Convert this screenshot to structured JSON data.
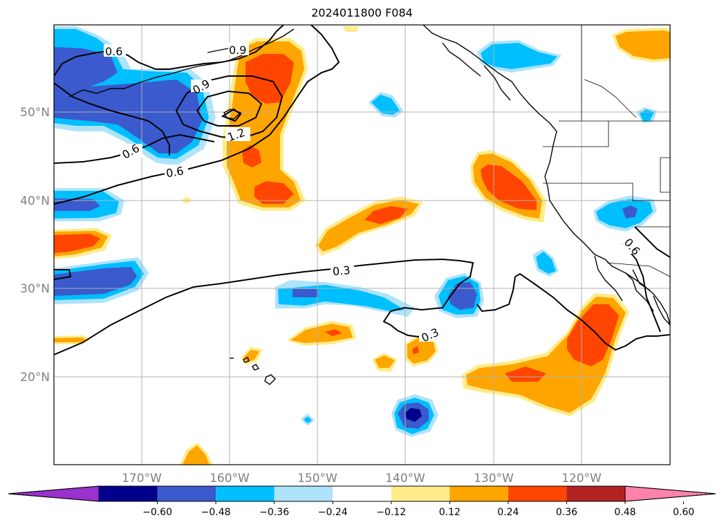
{
  "title": "2024011800 F084",
  "map": {
    "latitude_labels": [
      "50°N",
      "40°N",
      "30°N",
      "20°N"
    ],
    "longitude_labels": [
      "170°W",
      "160°W",
      "150°W",
      "140°W",
      "130°W",
      "120°W"
    ],
    "grid": true,
    "colors": {
      "c1": "#9a32cd",
      "c2": "#00008b",
      "c3": "#3a5acd",
      "c4": "#00bfff",
      "c5": "#aee3fa",
      "c6": "#ffffff",
      "c7": "#ffec8b",
      "c8": "#ffa500",
      "c9": "#ff4500",
      "c10": "#b22222",
      "c11": "#ff82ab"
    },
    "contour_labels": [
      "0.6",
      "0.9",
      "0.9",
      "1.2",
      "0.6",
      "0.6",
      "0.3",
      "0.3",
      "0.6"
    ]
  },
  "colorbar": {
    "tick_labels": [
      "−0.60",
      "−0.48",
      "−0.36",
      "−0.24",
      "−0.12",
      "0.12",
      "0.24",
      "0.36",
      "0.48",
      "0.60"
    ],
    "colors": [
      "#9a32cd",
      "#00008b",
      "#3a5acd",
      "#00bfff",
      "#aee3fa",
      "#ffffff",
      "#ffec8b",
      "#ffa500",
      "#ff4500",
      "#b22222",
      "#ff82ab"
    ]
  }
}
